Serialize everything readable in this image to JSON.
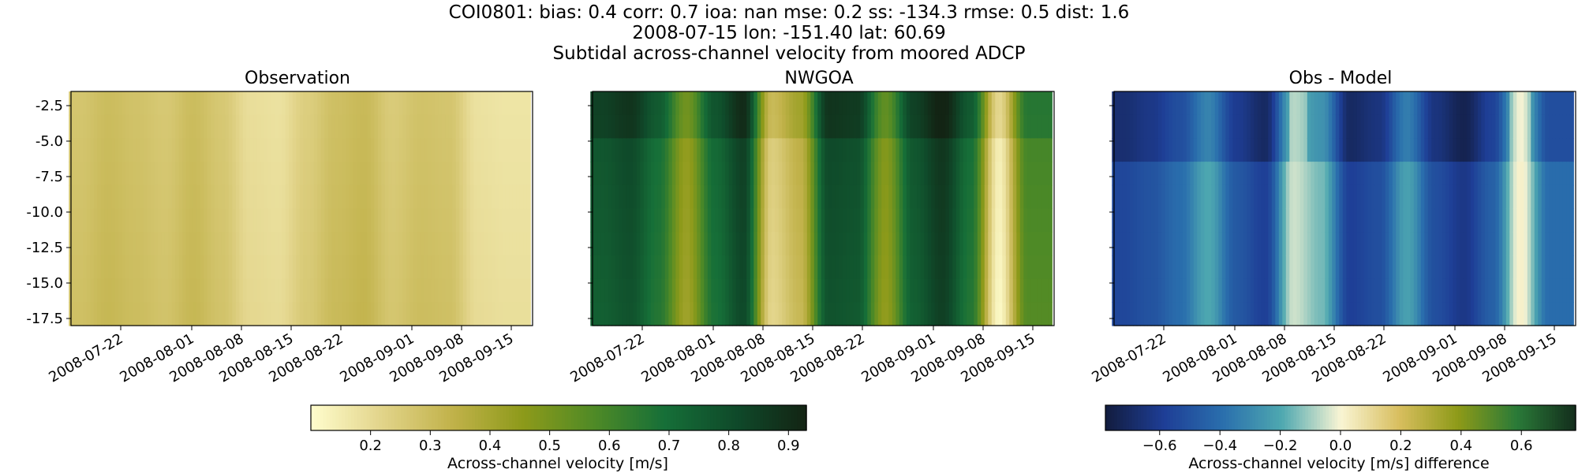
{
  "title": {
    "line1": "COI0801: bias: 0.4  corr: 0.7  ioa: nan  mse: 0.2  ss: -134.3  rmse: 0.5  dist: 1.6",
    "line2": "2008-07-15 lon: -151.40 lat: 60.69",
    "line3": "Subtidal across-channel velocity from moored ADCP"
  },
  "chart_data": [
    {
      "type": "heatmap",
      "title": "Observation",
      "x_range": [
        "2008-07-15",
        "2008-09-18"
      ],
      "ylim": [
        -18.0,
        -1.5
      ],
      "y_ticks": [
        "-2.5",
        "-5.0",
        "-7.5",
        "-10.0",
        "-12.5",
        "-15.0",
        "-17.5"
      ],
      "y_tick_values": [
        -2.5,
        -5.0,
        -7.5,
        -10.0,
        -12.5,
        -15.0,
        -17.5
      ],
      "x_ticks": [
        "2008-07-22",
        "2008-08-01",
        "2008-08-08",
        "2008-08-15",
        "2008-08-22",
        "2008-09-01",
        "2008-09-08",
        "2008-09-15"
      ],
      "colormap": "speed",
      "values_by_date": [
        {
          "x": "2008-07-16",
          "v": 0.27
        },
        {
          "x": "2008-07-20",
          "v": 0.3
        },
        {
          "x": "2008-07-24",
          "v": 0.28
        },
        {
          "x": "2008-07-28",
          "v": 0.26
        },
        {
          "x": "2008-08-01",
          "v": 0.3
        },
        {
          "x": "2008-08-05",
          "v": 0.26
        },
        {
          "x": "2008-08-09",
          "v": 0.19
        },
        {
          "x": "2008-08-13",
          "v": 0.18
        },
        {
          "x": "2008-08-17",
          "v": 0.24
        },
        {
          "x": "2008-08-21",
          "v": 0.29
        },
        {
          "x": "2008-08-25",
          "v": 0.31
        },
        {
          "x": "2008-08-29",
          "v": 0.25
        },
        {
          "x": "2008-09-02",
          "v": 0.28
        },
        {
          "x": "2008-09-06",
          "v": 0.27
        },
        {
          "x": "2008-09-10",
          "v": 0.18
        },
        {
          "x": "2008-09-14",
          "v": 0.17
        }
      ]
    },
    {
      "type": "heatmap",
      "title": "NWGOA",
      "x_range": [
        "2008-07-15",
        "2008-09-18"
      ],
      "ylim": [
        -18.0,
        -1.5
      ],
      "x_ticks": [
        "2008-07-22",
        "2008-08-01",
        "2008-08-08",
        "2008-08-15",
        "2008-08-22",
        "2008-09-01",
        "2008-09-08",
        "2008-09-15"
      ],
      "colormap": "speed",
      "values_by_date": [
        {
          "x": "2008-07-16",
          "v": 0.78
        },
        {
          "x": "2008-07-20",
          "v": 0.82
        },
        {
          "x": "2008-07-24",
          "v": 0.7
        },
        {
          "x": "2008-07-28",
          "v": 0.45
        },
        {
          "x": "2008-08-01",
          "v": 0.72
        },
        {
          "x": "2008-08-05",
          "v": 0.85
        },
        {
          "x": "2008-08-09",
          "v": 0.25
        },
        {
          "x": "2008-08-13",
          "v": 0.35
        },
        {
          "x": "2008-08-17",
          "v": 0.82
        },
        {
          "x": "2008-08-21",
          "v": 0.8
        },
        {
          "x": "2008-08-25",
          "v": 0.48
        },
        {
          "x": "2008-08-29",
          "v": 0.78
        },
        {
          "x": "2008-09-02",
          "v": 0.88
        },
        {
          "x": "2008-09-06",
          "v": 0.7
        },
        {
          "x": "2008-09-10",
          "v": 0.15
        },
        {
          "x": "2008-09-14",
          "v": 0.6
        }
      ]
    },
    {
      "type": "heatmap",
      "title": "Obs - Model",
      "x_range": [
        "2008-07-15",
        "2008-09-18"
      ],
      "ylim": [
        -18.0,
        -1.5
      ],
      "x_ticks": [
        "2008-07-22",
        "2008-08-01",
        "2008-08-08",
        "2008-08-15",
        "2008-08-22",
        "2008-09-01",
        "2008-09-08",
        "2008-09-15"
      ],
      "colormap": "delta",
      "values_by_date": [
        {
          "x": "2008-07-16",
          "v": -0.55
        },
        {
          "x": "2008-07-20",
          "v": -0.5
        },
        {
          "x": "2008-07-24",
          "v": -0.4
        },
        {
          "x": "2008-07-28",
          "v": -0.2
        },
        {
          "x": "2008-08-01",
          "v": -0.48
        },
        {
          "x": "2008-08-05",
          "v": -0.58
        },
        {
          "x": "2008-08-09",
          "v": -0.05
        },
        {
          "x": "2008-08-13",
          "v": -0.15
        },
        {
          "x": "2008-08-17",
          "v": -0.58
        },
        {
          "x": "2008-08-21",
          "v": -0.52
        },
        {
          "x": "2008-08-25",
          "v": -0.22
        },
        {
          "x": "2008-08-29",
          "v": -0.52
        },
        {
          "x": "2008-09-02",
          "v": -0.62
        },
        {
          "x": "2008-09-06",
          "v": -0.45
        },
        {
          "x": "2008-09-10",
          "v": 0.02
        },
        {
          "x": "2008-09-14",
          "v": -0.4
        }
      ]
    }
  ],
  "colorbars": [
    {
      "label": "Across-channel velocity [m/s]",
      "range": [
        0.1,
        0.93
      ],
      "ticks": [
        "0.2",
        "0.3",
        "0.4",
        "0.5",
        "0.6",
        "0.7",
        "0.8",
        "0.9"
      ],
      "tick_values": [
        0.2,
        0.3,
        0.4,
        0.5,
        0.6,
        0.7,
        0.8,
        0.9
      ],
      "colormap": "speed"
    },
    {
      "label": "Across-channel velocity [m/s] difference",
      "range": [
        -0.78,
        0.78
      ],
      "ticks": [
        "−0.6",
        "−0.4",
        "−0.2",
        "0.0",
        "0.2",
        "0.4",
        "0.6"
      ],
      "tick_values": [
        -0.6,
        -0.4,
        -0.2,
        0.0,
        0.2,
        0.4,
        0.6
      ],
      "colormap": "delta"
    }
  ],
  "colors": {
    "speed": [
      "#fffdcd",
      "#e2d48a",
      "#c1b24a",
      "#8d9a1a",
      "#4f8a26",
      "#166f38",
      "#0f4a2a",
      "#132414"
    ],
    "delta": [
      "#121c3e",
      "#1e3e96",
      "#2a6fad",
      "#4ea8b0",
      "#f9f5d4",
      "#d8be5e",
      "#8d9a18",
      "#2a7a38",
      "#132d1c"
    ]
  }
}
